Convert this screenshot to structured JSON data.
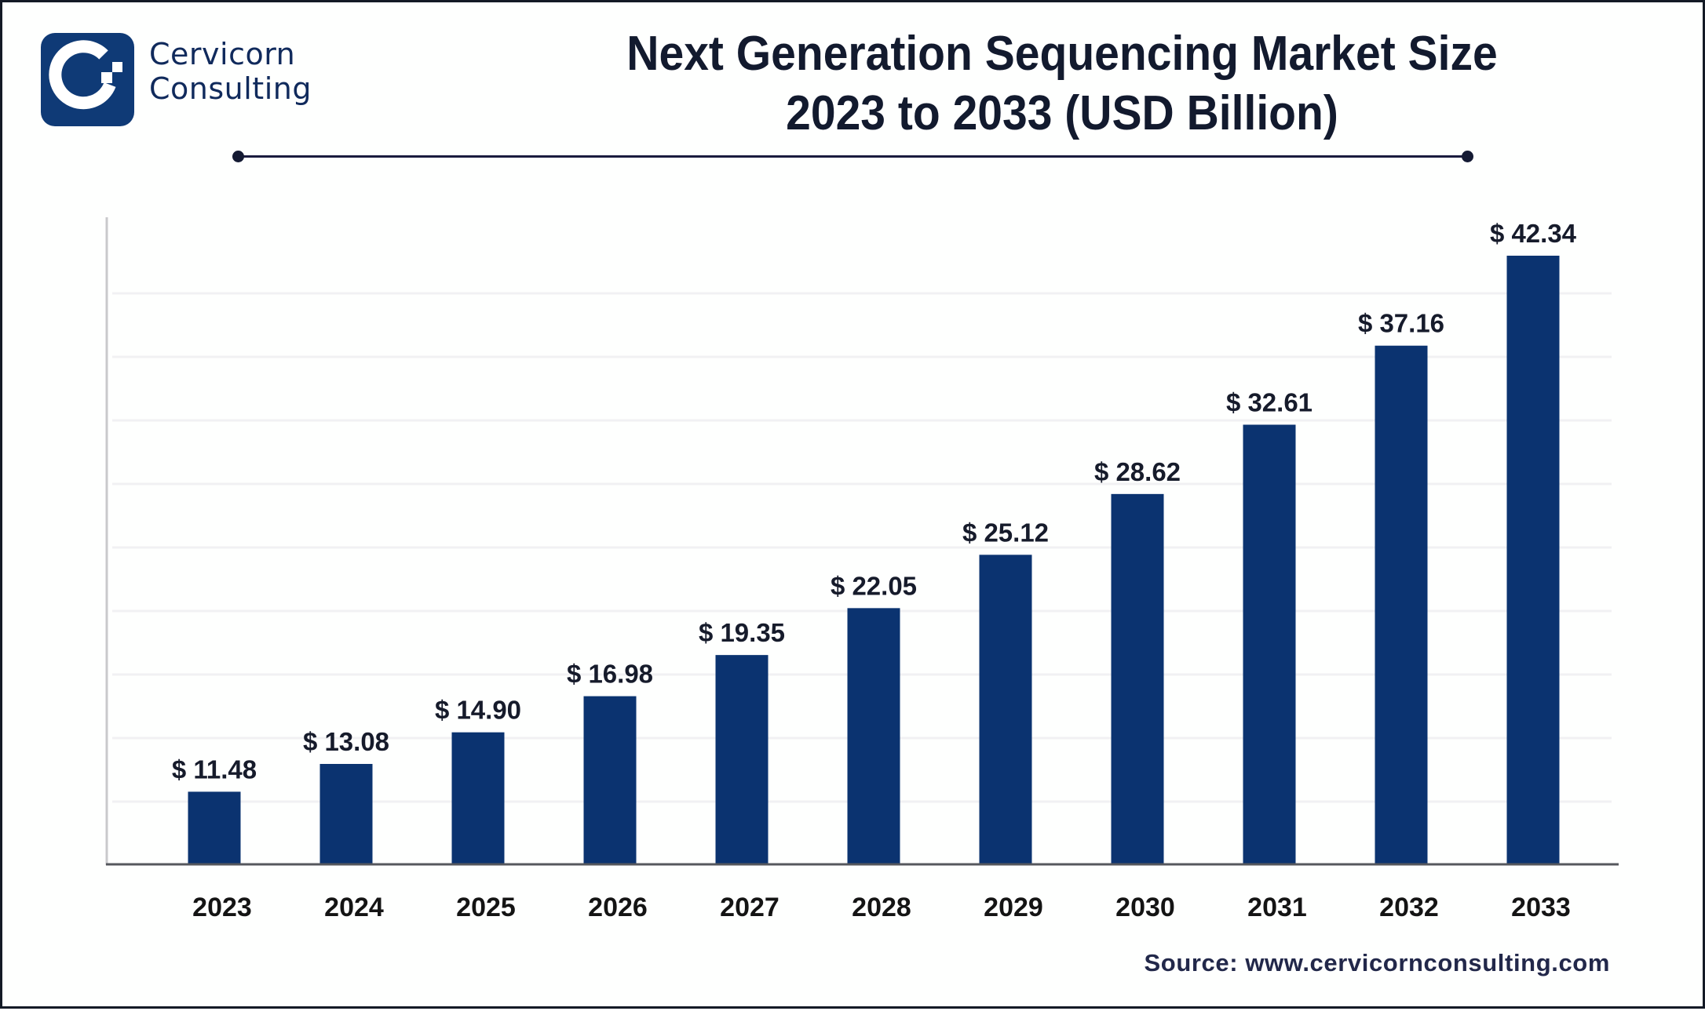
{
  "brand": {
    "line1": "Cervicorn",
    "line2": "Consulting",
    "logo_icon": "cervicorn-c-logo-icon",
    "color": "#0f3a76"
  },
  "title": {
    "line1": "Next Generation Sequencing Market Size",
    "line2": "2023 to 2033 (USD Billion)"
  },
  "source": "Source: www.cervicornconsulting.com",
  "chart_data": {
    "type": "bar",
    "title": "Next Generation Sequencing Market Size 2023 to 2033 (USD Billion)",
    "xlabel": "",
    "ylabel": "",
    "categories": [
      "2023",
      "2024",
      "2025",
      "2026",
      "2027",
      "2028",
      "2029",
      "2030",
      "2031",
      "2032",
      "2033"
    ],
    "values": [
      11.48,
      13.08,
      14.9,
      16.98,
      19.35,
      22.05,
      25.12,
      28.62,
      32.61,
      37.16,
      42.34
    ],
    "labels": [
      "$ 11.48",
      "$ 13.08",
      "$ 14.90",
      "$ 16.98",
      "$ 19.35",
      "$ 22.05",
      "$ 25.12",
      "$ 28.62",
      "$ 32.61",
      "$ 37.16",
      "$ 42.34"
    ],
    "unit": "USD Billion",
    "ylim": [
      7.3,
      42.34
    ],
    "grid": true,
    "legend": "none",
    "bar_color": "#0b3370"
  }
}
